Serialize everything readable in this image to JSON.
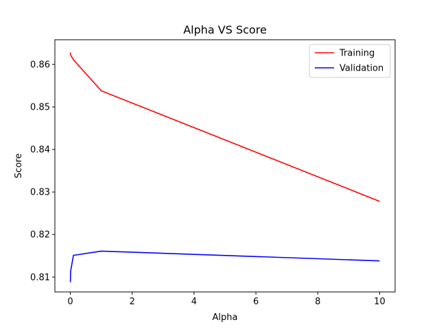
{
  "chart_data": {
    "type": "line",
    "title": "Alpha VS Score",
    "xlabel": "Alpha",
    "ylabel": "Score",
    "xlim": [
      -0.5,
      10.5
    ],
    "ylim": [
      0.8065,
      0.8658
    ],
    "x_ticks": [
      0,
      2,
      4,
      6,
      8,
      10
    ],
    "y_ticks": [
      0.81,
      0.82,
      0.83,
      0.84,
      0.85,
      0.86
    ],
    "x_tick_labels": [
      "0",
      "2",
      "4",
      "6",
      "8",
      "10"
    ],
    "y_tick_labels": [
      "0.81",
      "0.82",
      "0.83",
      "0.84",
      "0.85",
      "0.86"
    ],
    "grid": false,
    "legend_position": "top-right",
    "series": [
      {
        "name": "Training",
        "color": "#ff0000",
        "x": [
          0.001,
          0.01,
          0.1,
          1,
          10
        ],
        "y": [
          0.8628,
          0.8622,
          0.8611,
          0.8538,
          0.8278
        ]
      },
      {
        "name": "Validation",
        "color": "#0000ff",
        "x": [
          0.001,
          0.01,
          0.1,
          1,
          10
        ],
        "y": [
          0.8088,
          0.8114,
          0.8151,
          0.8161,
          0.8138
        ]
      }
    ]
  }
}
